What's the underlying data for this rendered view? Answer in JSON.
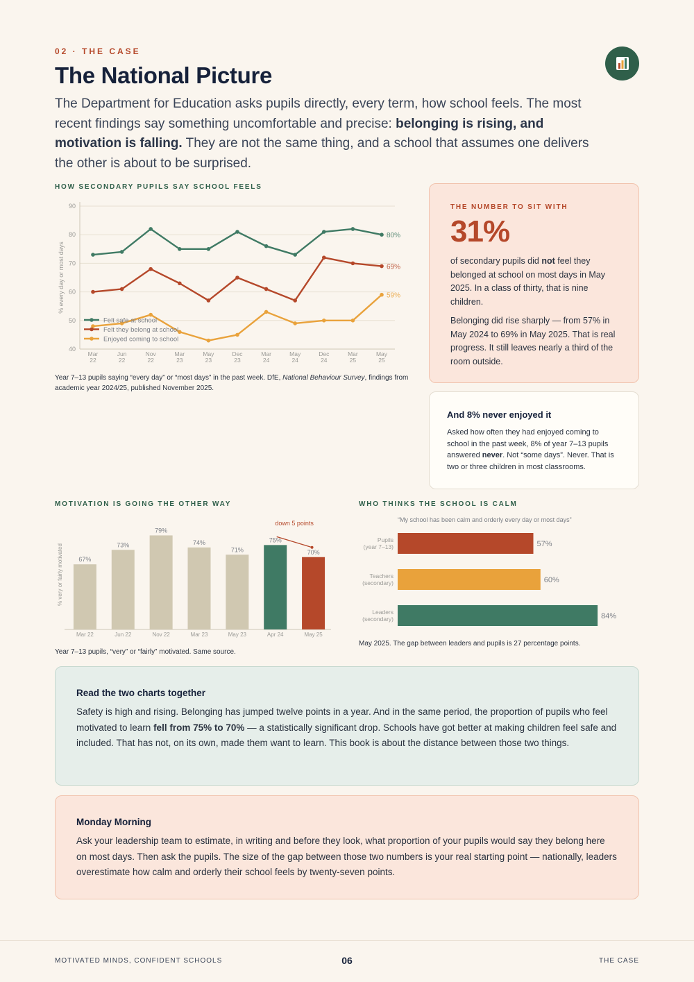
{
  "header": {
    "kicker": "02 · THE CASE",
    "title": "The National Picture",
    "badge_icon": "bar-chart-icon",
    "lede_1": "The Department for Education asks pupils directly, every term, how school feels. The most recent findings say something uncomfortable and precise: ",
    "lede_bold": "belonging is rising, and motivation is falling.",
    "lede_2": " They are not the same thing, and a school that assumes one delivers the other is about to be surprised."
  },
  "line_section": {
    "label": "HOW SECONDARY PUPILS SAY SCHOOL FEELS",
    "caption_1": "Year 7–13 pupils saying “every day” or “most days” in the past week. DfE, ",
    "caption_italic": "National Behaviour Survey",
    "caption_2": ", findings from academic year 2024/25, published November 2025."
  },
  "callout": {
    "label": "THE NUMBER TO SIT WITH",
    "big": "31%",
    "p1_a": "of secondary pupils did ",
    "p1_bold": "not",
    "p1_b": " feel they belonged at school on most days in May 2025. In a class of thirty, that is nine children.",
    "p2": "Belonging did rise sharply — from 57% in May 2024 to 69% in May 2025. That is real progress. It still leaves nearly a third of the room outside."
  },
  "note": {
    "title": "And 8% never enjoyed it",
    "p_a": "Asked how often they had enjoyed coming to school in the past week, 8% of year 7–13 pupils answered ",
    "p_bold": "never",
    "p_b": ". Not “some days”. Never. That is two or three children in most classrooms."
  },
  "bar_section": {
    "label": "MOTIVATION IS GOING THE OTHER WAY",
    "caption": "Year 7–13 pupils, “very” or “fairly” motivated. Same source."
  },
  "hbar_section": {
    "label": "WHO THINKS THE SCHOOL IS CALM",
    "caption": "May 2025. The gap between leaders and pupils is 27 percentage points."
  },
  "read_box": {
    "title": "Read the two charts together",
    "p_a": "Safety is high and rising. Belonging has jumped twelve points in a year. And in the same period, the proportion of pupils who feel motivated to learn ",
    "p_bold": "fell from 75% to 70%",
    "p_b": " — a statistically significant drop. Schools have got better at making children feel safe and included. That has not, on its own, made them want to learn. This book is about the distance between those two things."
  },
  "monday_box": {
    "title": "Monday Morning",
    "p": "Ask your leadership team to estimate, in writing and before they look, what proportion of your pupils would say they belong here on most days. Then ask the pupils. The size of the gap between those two numbers is your real starting point — nationally, leaders overestimate how calm and orderly their school feels by twenty-seven points."
  },
  "footer": {
    "left": "MOTIVATED MINDS, CONFIDENT SCHOOLS",
    "page": "06",
    "right": "THE CASE"
  },
  "colors": {
    "green": "#3f7a64",
    "rust": "#b5482a",
    "amber": "#e9a23b",
    "beige": "#d0c8b1"
  },
  "chart_data": [
    {
      "type": "line",
      "x": [
        "Mar\n22",
        "Jun\n22",
        "Nov\n22",
        "Mar\n23",
        "May\n23",
        "Dec\n23",
        "Mar\n24",
        "May\n24",
        "Dec\n24",
        "Mar\n25",
        "May\n25"
      ],
      "ylabel": "% every day or most days",
      "ylim": [
        40,
        90
      ],
      "yticks": [
        40,
        50,
        60,
        70,
        80,
        90
      ],
      "grid": true,
      "legend": "bottom-left",
      "series": [
        {
          "name": "Felt safe at school",
          "color": "#3f7a64",
          "end_label": "80%",
          "values": [
            73,
            74,
            82,
            75,
            75,
            81,
            76,
            73,
            81,
            82,
            80
          ]
        },
        {
          "name": "Felt they belong at school",
          "color": "#b5482a",
          "end_label": "69%",
          "values": [
            60,
            61,
            68,
            63,
            57,
            65,
            61,
            57,
            72,
            70,
            69
          ]
        },
        {
          "name": "Enjoyed coming to school",
          "color": "#e9a23b",
          "end_label": "59%",
          "values": [
            48,
            49,
            52,
            46,
            43,
            45,
            53,
            49,
            50,
            50,
            59
          ]
        }
      ]
    },
    {
      "type": "bar",
      "ylabel": "% very or fairly motivated",
      "categories": [
        "Mar 22",
        "Jun 22",
        "Nov 22",
        "Mar 23",
        "May 23",
        "Apr 24",
        "May 25"
      ],
      "values": [
        67,
        73,
        79,
        74,
        71,
        75,
        70
      ],
      "value_labels": [
        "67%",
        "73%",
        "79%",
        "74%",
        "71%",
        "75%",
        "70%"
      ],
      "bar_colors": [
        "#d0c8b1",
        "#d0c8b1",
        "#d0c8b1",
        "#d0c8b1",
        "#d0c8b1",
        "#3f7a64",
        "#b5482a"
      ],
      "annotation": "down 5 points",
      "ylim": [
        40,
        80
      ]
    },
    {
      "type": "bar",
      "orientation": "horizontal",
      "subtitle": "“My school has been calm and orderly every day or most days”",
      "categories": [
        "Pupils\n(year 7–13)",
        "Teachers\n(secondary)",
        "Leaders\n(secondary)"
      ],
      "values": [
        57,
        60,
        84
      ],
      "value_labels": [
        "57%",
        "60%",
        "84%"
      ],
      "bar_colors": [
        "#b5482a",
        "#e9a23b",
        "#3f7a64"
      ],
      "xlim": [
        0,
        100
      ]
    }
  ]
}
